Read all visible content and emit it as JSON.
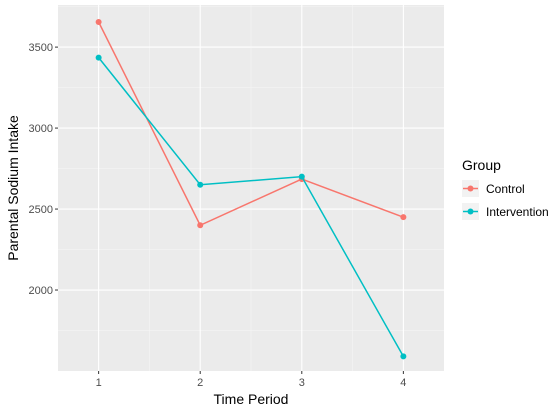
{
  "chart_data": {
    "type": "line",
    "xlabel": "Time Period",
    "ylabel": "Parental Sodium Intake",
    "x": [
      1,
      2,
      3,
      4
    ],
    "x_tick_labels": [
      "1",
      "2",
      "3",
      "4"
    ],
    "y_ticks": [
      2000,
      2500,
      3000,
      3500
    ],
    "y_tick_labels": [
      "2000",
      "2500",
      "3000",
      "3500"
    ],
    "xlim": [
      0.6,
      4.4
    ],
    "ylim": [
      1500,
      3760
    ],
    "grid": true,
    "legend": {
      "title": "Group",
      "position": "right"
    },
    "series": [
      {
        "name": "Control",
        "color": "#F8766D",
        "values": [
          3655,
          2400,
          2685,
          2450
        ]
      },
      {
        "name": "Intervention",
        "color": "#00BFC4",
        "values": [
          3435,
          2650,
          2700,
          1590
        ]
      }
    ]
  }
}
